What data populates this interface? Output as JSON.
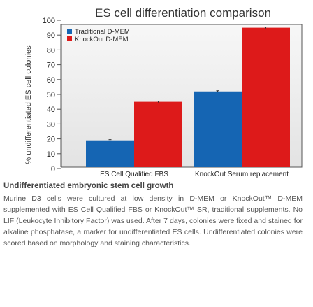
{
  "chart_data": {
    "type": "bar",
    "title": "ES cell differentiation comparison",
    "ylabel": "% undifferentiated ES cell colonies",
    "xlabel": "",
    "ylim": [
      0,
      100
    ],
    "yticks": [
      0,
      10,
      20,
      30,
      40,
      50,
      60,
      70,
      80,
      90,
      100
    ],
    "categories": [
      "ES Cell Qualified FBS",
      "KnockOut Serum replacement"
    ],
    "series": [
      {
        "name": "Traditional D-MEM",
        "color": "#1565b3",
        "values": [
          19,
          52
        ],
        "errors": [
          0.5,
          0.5
        ]
      },
      {
        "name": "KnockOut D-MEM",
        "color": "#dd1a1a",
        "values": [
          45,
          95
        ],
        "errors": [
          0.5,
          0.5
        ]
      }
    ],
    "legend_position": "top-left",
    "grid": false
  },
  "caption": {
    "title": "Undifferentiated embryonic stem cell growth",
    "body": "Murine D3 cells were cultured at low density in D-MEM or KnockOut™ D-MEM supplemented with ES Cell Qualified FBS or KnockOut™ SR, traditional supplements. No LIF (Leukocyte Inhibitory Factor) was used. After 7 days, colonies were fixed and stained for alkaline phosphatase, a marker for undifferentiated ES cells. Undifferentiated colonies were scored based on morphology and staining characteristics."
  }
}
